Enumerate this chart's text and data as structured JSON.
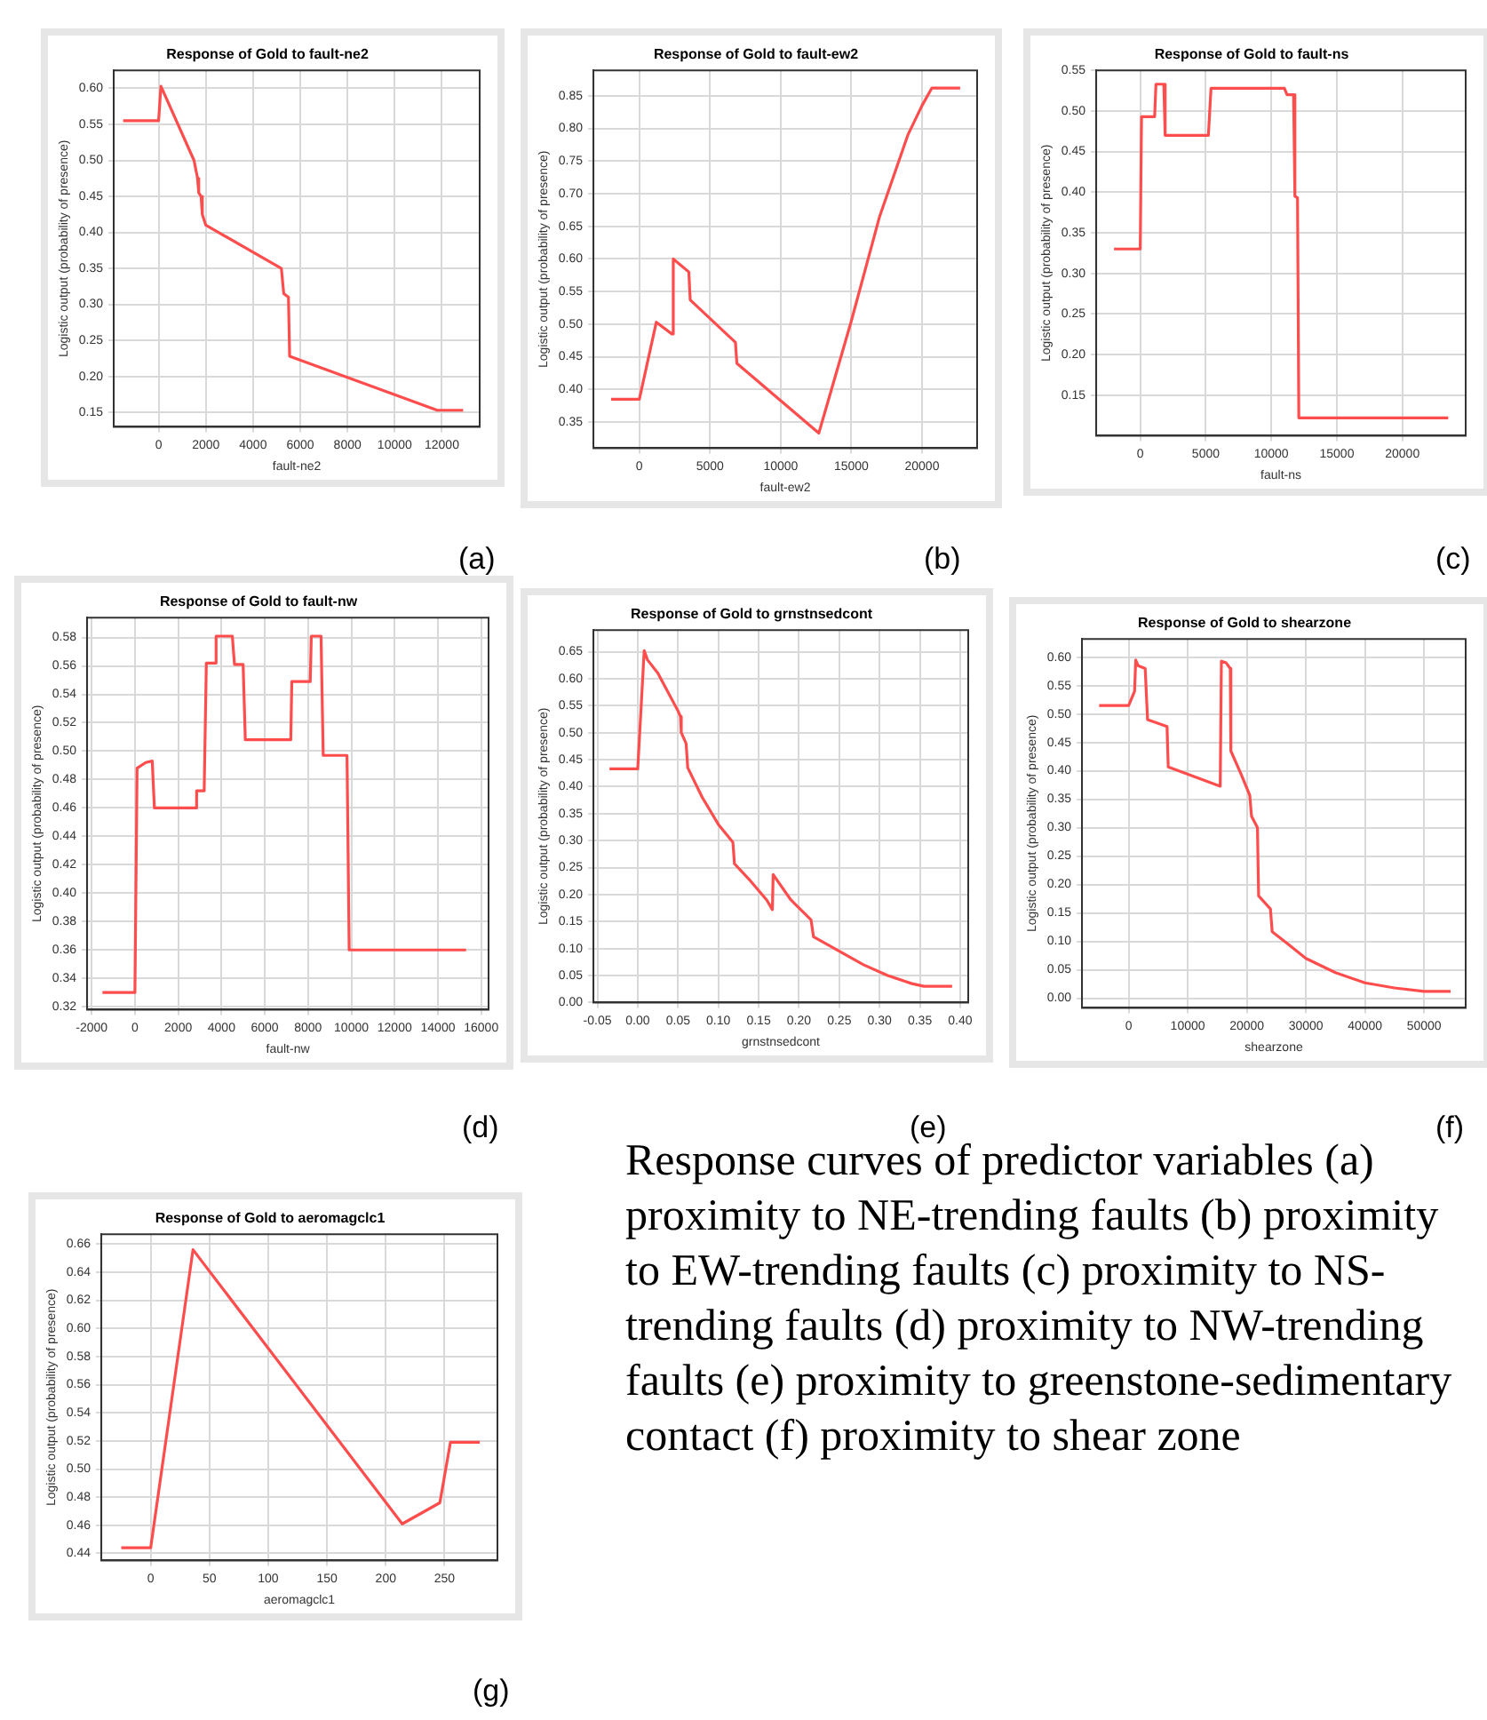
{
  "chart_data": [
    {
      "type": "line",
      "title": "Response of Gold to fault-ne2",
      "xlabel": "fault-ne2",
      "ylabel": "Logistic output (probability of presence)",
      "xlim": [
        -1900,
        13600
      ],
      "xticks": [
        0,
        2000,
        4000,
        6000,
        8000,
        10000,
        12000
      ],
      "ylim": [
        0.13,
        0.625
      ],
      "yticks": [
        {
          "value": 0.15,
          "label": "0.15"
        },
        {
          "value": 0.2,
          "label": "0.20"
        },
        {
          "value": 0.25,
          "label": "0.25"
        },
        {
          "value": 0.3,
          "label": "0.30"
        },
        {
          "value": 0.35,
          "label": "0.35"
        },
        {
          "value": 0.4,
          "label": "0.40"
        },
        {
          "value": 0.45,
          "label": "0.45"
        },
        {
          "value": 0.5,
          "label": "0.50"
        },
        {
          "value": 0.55,
          "label": "0.55"
        },
        {
          "value": 0.6,
          "label": "0.60"
        }
      ],
      "grid": true,
      "marker": "none",
      "annotations": [
        "(a)"
      ],
      "series": [
        {
          "color": "#ff4d4d",
          "x": [
            -1500,
            0,
            100,
            1500,
            1650,
            1700,
            1800,
            1850,
            2000,
            5200,
            5300,
            5500,
            5550,
            11800,
            12900
          ],
          "values": [
            0.555,
            0.555,
            0.603,
            0.5,
            0.475,
            0.455,
            0.45,
            0.425,
            0.41,
            0.35,
            0.315,
            0.31,
            0.228,
            0.153,
            0.153
          ]
        }
      ]
    },
    {
      "type": "line",
      "title": "Response of Gold to fault-ew2",
      "xlabel": "fault-ew2",
      "ylabel": "Logistic output (probability of presence)",
      "xlim": [
        -3250,
        23900
      ],
      "xticks": [
        0,
        5000,
        10000,
        15000,
        20000
      ],
      "ylim": [
        0.31,
        0.889
      ],
      "yticks": [
        {
          "value": 0.35,
          "label": "0.35"
        },
        {
          "value": 0.4,
          "label": "0.40"
        },
        {
          "value": 0.45,
          "label": "0.45"
        },
        {
          "value": 0.5,
          "label": "0.50"
        },
        {
          "value": 0.55,
          "label": "0.55"
        },
        {
          "value": 0.6,
          "label": "0.60"
        },
        {
          "value": 0.65,
          "label": "0.65"
        },
        {
          "value": 0.7,
          "label": "0.70"
        },
        {
          "value": 0.75,
          "label": "0.75"
        },
        {
          "value": 0.8,
          "label": "0.80"
        },
        {
          "value": 0.85,
          "label": "0.85"
        }
      ],
      "grid": true,
      "marker": "none",
      "annotations": [
        "(b)"
      ],
      "series": [
        {
          "color": "#ff4d4d",
          "x": [
            -2000,
            0,
            1200,
            2300,
            2400,
            3500,
            3600,
            6800,
            6900,
            12700,
            15000,
            17000,
            19000,
            20000,
            20700,
            22700
          ],
          "values": [
            0.385,
            0.385,
            0.503,
            0.485,
            0.6,
            0.58,
            0.537,
            0.472,
            0.44,
            0.333,
            0.505,
            0.665,
            0.79,
            0.835,
            0.862,
            0.862
          ]
        }
      ]
    },
    {
      "type": "line",
      "title": "Response of Gold to fault-ns",
      "xlabel": "fault-ns",
      "ylabel": "Logistic output (probability of presence)",
      "xlim": [
        -3360,
        24830
      ],
      "xticks": [
        0,
        5000,
        10000,
        15000,
        20000
      ],
      "ylim": [
        0.1,
        0.55
      ],
      "yticks": [
        {
          "value": 0.15,
          "label": "0.15"
        },
        {
          "value": 0.2,
          "label": "0.20"
        },
        {
          "value": 0.25,
          "label": "0.25"
        },
        {
          "value": 0.3,
          "label": "0.30"
        },
        {
          "value": 0.35,
          "label": "0.35"
        },
        {
          "value": 0.4,
          "label": "0.40"
        },
        {
          "value": 0.45,
          "label": "0.45"
        },
        {
          "value": 0.5,
          "label": "0.50"
        },
        {
          "value": 0.55,
          "label": "0.55"
        }
      ],
      "grid": true,
      "marker": "none",
      "annotations": [
        "(c)"
      ],
      "series": [
        {
          "color": "#ff4d4d",
          "x": [
            -2000,
            0,
            100,
            1100,
            1200,
            1800,
            1900,
            5200,
            5400,
            11000,
            11200,
            11700,
            11800,
            12000,
            12100,
            23500
          ],
          "values": [
            0.33,
            0.33,
            0.493,
            0.493,
            0.533,
            0.533,
            0.47,
            0.47,
            0.528,
            0.528,
            0.52,
            0.52,
            0.395,
            0.393,
            0.122,
            0.122
          ]
        }
      ]
    },
    {
      "type": "line",
      "title": "Response of Gold to fault-nw",
      "xlabel": "fault-nw",
      "ylabel": "Logistic output (probability of presence)",
      "xlim": [
        -2210,
        16340
      ],
      "xticks": [
        -2000,
        0,
        2000,
        4000,
        6000,
        8000,
        10000,
        12000,
        14000,
        16000
      ],
      "ylim": [
        0.318,
        0.594
      ],
      "yticks": [
        {
          "value": 0.32,
          "label": "0.32"
        },
        {
          "value": 0.34,
          "label": "0.34"
        },
        {
          "value": 0.36,
          "label": "0.36"
        },
        {
          "value": 0.38,
          "label": "0.38"
        },
        {
          "value": 0.4,
          "label": "0.40"
        },
        {
          "value": 0.42,
          "label": "0.42"
        },
        {
          "value": 0.44,
          "label": "0.44"
        },
        {
          "value": 0.46,
          "label": "0.46"
        },
        {
          "value": 0.48,
          "label": "0.48"
        },
        {
          "value": 0.5,
          "label": "0.50"
        },
        {
          "value": 0.52,
          "label": "0.52"
        },
        {
          "value": 0.54,
          "label": "0.54"
        },
        {
          "value": 0.56,
          "label": "0.56"
        },
        {
          "value": 0.58,
          "label": "0.58"
        }
      ],
      "grid": true,
      "marker": "none",
      "annotations": [
        "(d)"
      ],
      "series": [
        {
          "color": "#ff4d4d",
          "x": [
            -1500,
            0,
            100,
            500,
            800,
            900,
            2800,
            2850,
            3200,
            3300,
            3700,
            3750,
            4500,
            4600,
            5000,
            5100,
            7200,
            7250,
            8100,
            8150,
            8600,
            8700,
            9800,
            9900,
            15300
          ],
          "values": [
            0.33,
            0.33,
            0.488,
            0.492,
            0.493,
            0.46,
            0.46,
            0.472,
            0.472,
            0.562,
            0.562,
            0.581,
            0.581,
            0.561,
            0.561,
            0.508,
            0.508,
            0.549,
            0.549,
            0.581,
            0.581,
            0.497,
            0.497,
            0.36,
            0.36
          ]
        }
      ]
    },
    {
      "type": "line",
      "title": "Response of Gold to grnstnsedcont",
      "xlabel": "grnstnsedcont",
      "ylabel": "Logistic output (probability of presence)",
      "xlim": [
        -0.055,
        0.41
      ],
      "xticks": [
        {
          "value": -0.05,
          "label": "-0.05"
        },
        {
          "value": 0,
          "label": "0.00"
        },
        {
          "value": 0.05,
          "label": "0.05"
        },
        {
          "value": 0.1,
          "label": "0.10"
        },
        {
          "value": 0.15,
          "label": "0.15"
        },
        {
          "value": 0.2,
          "label": "0.20"
        },
        {
          "value": 0.25,
          "label": "0.25"
        },
        {
          "value": 0.3,
          "label": "0.30"
        },
        {
          "value": 0.35,
          "label": "0.35"
        },
        {
          "value": 0.4,
          "label": "0.40"
        }
      ],
      "ylim": [
        0,
        0.69
      ],
      "yticks": [
        {
          "value": 0,
          "label": "0.00"
        },
        {
          "value": 0.05,
          "label": "0.05"
        },
        {
          "value": 0.1,
          "label": "0.10"
        },
        {
          "value": 0.15,
          "label": "0.15"
        },
        {
          "value": 0.2,
          "label": "0.20"
        },
        {
          "value": 0.25,
          "label": "0.25"
        },
        {
          "value": 0.3,
          "label": "0.30"
        },
        {
          "value": 0.35,
          "label": "0.35"
        },
        {
          "value": 0.4,
          "label": "0.40"
        },
        {
          "value": 0.45,
          "label": "0.45"
        },
        {
          "value": 0.5,
          "label": "0.50"
        },
        {
          "value": 0.55,
          "label": "0.55"
        },
        {
          "value": 0.6,
          "label": "0.60"
        },
        {
          "value": 0.65,
          "label": "0.65"
        }
      ],
      "grid": true,
      "marker": "none",
      "annotations": [
        "(e)"
      ],
      "series": [
        {
          "color": "#ff4d4d",
          "x": [
            -0.035,
            0,
            0.008,
            0.012,
            0.025,
            0.05,
            0.053,
            0.054,
            0.06,
            0.062,
            0.08,
            0.1,
            0.118,
            0.12,
            0.14,
            0.16,
            0.167,
            0.168,
            0.19,
            0.215,
            0.218,
            0.25,
            0.28,
            0.31,
            0.34,
            0.355,
            0.39
          ],
          "values": [
            0.433,
            0.433,
            0.652,
            0.635,
            0.61,
            0.54,
            0.53,
            0.5,
            0.48,
            0.435,
            0.38,
            0.33,
            0.297,
            0.257,
            0.225,
            0.19,
            0.172,
            0.237,
            0.19,
            0.153,
            0.122,
            0.095,
            0.07,
            0.05,
            0.035,
            0.03,
            0.03
          ]
        }
      ]
    },
    {
      "type": "line",
      "title": "Response of Gold to shearzone",
      "xlabel": "shearzone",
      "ylabel": "Logistic output (probability of presence)",
      "xlim": [
        -7900,
        57050
      ],
      "xticks": [
        0,
        10000,
        20000,
        30000,
        40000,
        50000
      ],
      "ylim": [
        -0.017,
        0.632
      ],
      "yticks": [
        {
          "value": 0,
          "label": "0.00"
        },
        {
          "value": 0.05,
          "label": "0.05"
        },
        {
          "value": 0.1,
          "label": "0.10"
        },
        {
          "value": 0.15,
          "label": "0.15"
        },
        {
          "value": 0.2,
          "label": "0.20"
        },
        {
          "value": 0.25,
          "label": "0.25"
        },
        {
          "value": 0.3,
          "label": "0.30"
        },
        {
          "value": 0.35,
          "label": "0.35"
        },
        {
          "value": 0.4,
          "label": "0.40"
        },
        {
          "value": 0.45,
          "label": "0.45"
        },
        {
          "value": 0.5,
          "label": "0.50"
        },
        {
          "value": 0.55,
          "label": "0.55"
        },
        {
          "value": 0.6,
          "label": "0.60"
        }
      ],
      "grid": true,
      "marker": "none",
      "annotations": [
        "(f)"
      ],
      "series": [
        {
          "color": "#ff4d4d",
          "x": [
            -5000,
            0,
            1000,
            1200,
            1600,
            2800,
            3200,
            6500,
            6700,
            15500,
            15700,
            16500,
            17200,
            17300,
            19000,
            20500,
            20800,
            21800,
            22000,
            24000,
            24300,
            27000,
            30000,
            35000,
            40000,
            45000,
            50000,
            54500
          ],
          "values": [
            0.515,
            0.515,
            0.54,
            0.595,
            0.585,
            0.58,
            0.49,
            0.478,
            0.407,
            0.373,
            0.593,
            0.59,
            0.58,
            0.435,
            0.395,
            0.357,
            0.32,
            0.3,
            0.18,
            0.157,
            0.117,
            0.095,
            0.07,
            0.045,
            0.027,
            0.018,
            0.012,
            0.012
          ]
        }
      ]
    },
    {
      "type": "line",
      "title": "Response of Gold to aeromagclc1",
      "xlabel": "aeromagclc1",
      "ylabel": "Logistic output (probability of presence)",
      "xlim": [
        -42,
        295
      ],
      "xticks": [
        0,
        50,
        100,
        150,
        200,
        250
      ],
      "ylim": [
        0.435,
        0.667
      ],
      "yticks": [
        {
          "value": 0.44,
          "label": "0.44"
        },
        {
          "value": 0.46,
          "label": "0.46"
        },
        {
          "value": 0.48,
          "label": "0.48"
        },
        {
          "value": 0.5,
          "label": "0.50"
        },
        {
          "value": 0.52,
          "label": "0.52"
        },
        {
          "value": 0.54,
          "label": "0.54"
        },
        {
          "value": 0.56,
          "label": "0.56"
        },
        {
          "value": 0.58,
          "label": "0.58"
        },
        {
          "value": 0.6,
          "label": "0.60"
        },
        {
          "value": 0.62,
          "label": "0.62"
        },
        {
          "value": 0.64,
          "label": "0.64"
        },
        {
          "value": 0.66,
          "label": "0.66"
        }
      ],
      "grid": true,
      "marker": "none",
      "annotations": [
        "(g)",
        "Response curves of predictor variables (a) proximity to NE-trending faults (b) proximity to EW-trending faults (c) proximity to NS-trending faults (d) proximity to NW-trending faults (e) proximity to greenstone-sedimentary contact (f) proximity to shear zone"
      ],
      "series": [
        {
          "color": "#ff4d4d",
          "x": [
            -25,
            0,
            36,
            214,
            246,
            255,
            280
          ],
          "values": [
            0.444,
            0.444,
            0.656,
            0.461,
            0.476,
            0.519,
            0.519
          ]
        }
      ]
    }
  ]
}
